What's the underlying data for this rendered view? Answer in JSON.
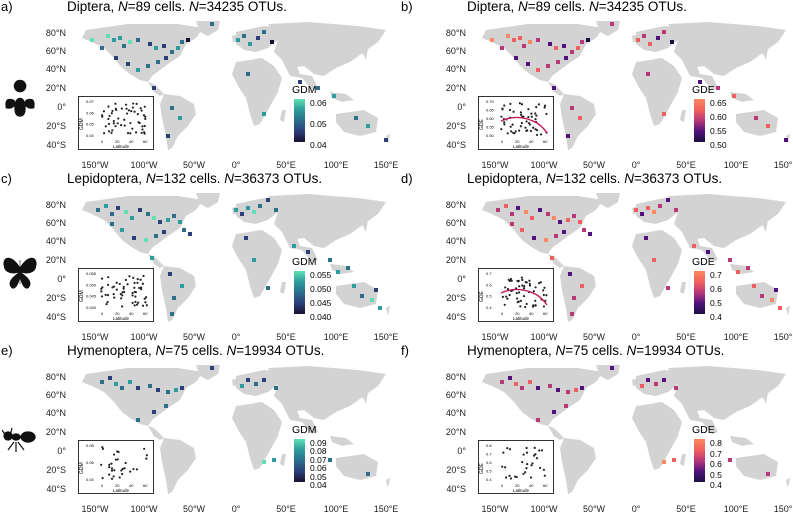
{
  "panels": [
    {
      "label": "a)",
      "group": "Diptera",
      "cells": "89",
      "otus": "34235",
      "metric": "GDM",
      "ticks": [
        "0.06",
        "0.05",
        "0.04"
      ],
      "inset_y": [
        "0.07",
        "0.06",
        "0.05",
        "0.04"
      ],
      "color": "teal"
    },
    {
      "label": "b)",
      "group": "Diptera",
      "cells": "89",
      "otus": "34235",
      "metric": "GDE",
      "ticks": [
        "0.65",
        "0.60",
        "0.55",
        "0.50"
      ],
      "inset_y": [
        "0.70",
        "0.65",
        "0.60",
        "0.55",
        "0.50"
      ],
      "color": "magma"
    },
    {
      "label": "c)",
      "group": "Lepidoptera",
      "cells": "132",
      "otus": "36373",
      "metric": "GDM",
      "ticks": [
        "0.055",
        "0.050",
        "0.045",
        "0.040"
      ],
      "inset_y": [
        "0.055",
        "0.050",
        "0.045",
        "0.040"
      ],
      "color": "teal"
    },
    {
      "label": "d)",
      "group": "Lepidoptera",
      "cells": "132",
      "otus": "36373",
      "metric": "GDE",
      "ticks": [
        "0.7",
        "0.6",
        "0.5",
        "0.4"
      ],
      "inset_y": [
        "0.7",
        "0.6",
        "0.5",
        "0.4"
      ],
      "color": "magma"
    },
    {
      "label": "e)",
      "group": "Hymenoptera",
      "cells": "75",
      "otus": "19934",
      "metric": "GDM",
      "ticks": [
        "0.09",
        "0.08",
        "0.07",
        "0.06",
        "0.05",
        "0.04"
      ],
      "inset_y": [
        "0.08",
        "0.06",
        "0.04"
      ],
      "color": "teal"
    },
    {
      "label": "f)",
      "group": "Hymenoptera",
      "cells": "75",
      "otus": "19934",
      "metric": "GDE",
      "ticks": [
        "0.8",
        "0.7",
        "0.6",
        "0.5",
        "0.4"
      ],
      "inset_y": [
        "0.8",
        "0.7",
        "0.6",
        "0.5",
        "0.4"
      ],
      "color": "magma"
    }
  ],
  "title_parts": {
    "n_prefix": "N",
    "cells_word": "cells.",
    "otus_word": "OTUs."
  },
  "lat_ticks": [
    "80°N",
    "60°N",
    "40°N",
    "20°N",
    "0°",
    "20°S",
    "40°S"
  ],
  "lon_ticks": [
    "150°W",
    "100°W",
    "50°W",
    "0°",
    "50°E",
    "100°E",
    "150°E"
  ],
  "inset_x": {
    "label": "Latitude",
    "ticks": [
      "0",
      "20",
      "40",
      "60"
    ]
  },
  "insects": [
    {
      "name": "fly-icon",
      "caption": ""
    },
    {
      "name": "butterfly-icon",
      "caption": ""
    },
    {
      "name": "ant-icon",
      "caption": ""
    }
  ],
  "colors": {
    "land": "#d3d3d3",
    "teal_hi": "#5fe0b5",
    "teal_mid": "#2b6f8c",
    "teal_lo": "#1b1033",
    "magma_hi": "#fc8961",
    "magma_mid": "#b73779",
    "magma_lo": "#1a1042",
    "trend": "#c2185b"
  }
}
